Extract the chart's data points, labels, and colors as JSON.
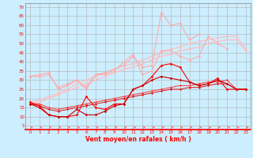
{
  "x": [
    0,
    1,
    2,
    3,
    4,
    5,
    6,
    7,
    8,
    9,
    10,
    11,
    12,
    13,
    14,
    15,
    16,
    17,
    18,
    19,
    20,
    21,
    22,
    23
  ],
  "bg_color": "#cceeff",
  "grid_color": "#b0b0b0",
  "line_top_jagged_color": "#ffaaaa",
  "line_top_jagged_y": [
    32,
    32,
    33,
    26,
    28,
    30,
    26,
    33,
    34,
    36,
    38,
    43,
    37,
    38,
    67,
    60,
    61,
    52,
    55,
    null,
    null,
    null,
    null,
    null
  ],
  "line_mid_jagged_color": "#ffaaaa",
  "line_mid_jagged_y": [
    32,
    33,
    34,
    25,
    27,
    30,
    25,
    33,
    33,
    35,
    40,
    44,
    33,
    35,
    46,
    46,
    43,
    41,
    43,
    54,
    50,
    47,
    null,
    null
  ],
  "line_diag1_color": "#ffbbbb",
  "line_diag1_y": [
    18,
    19,
    21,
    23,
    25,
    28,
    30,
    32,
    34,
    36,
    38,
    39,
    41,
    43,
    45,
    47,
    48,
    50,
    51,
    52,
    53,
    54,
    54,
    47
  ],
  "line_diag2_color": "#ffbbbb",
  "line_diag2_y": [
    17,
    18,
    20,
    22,
    24,
    26,
    28,
    30,
    32,
    34,
    36,
    37,
    39,
    41,
    43,
    44,
    46,
    47,
    48,
    50,
    51,
    52,
    52,
    46
  ],
  "line_bot_jagged1_color": "#ff0000",
  "line_bot_jagged1_y": [
    18,
    16,
    11,
    10,
    10,
    11,
    21,
    15,
    14,
    17,
    17,
    25,
    27,
    32,
    38,
    39,
    37,
    29,
    27,
    28,
    31,
    25,
    25,
    25
  ],
  "line_bot_jagged2_color": "#cc0000",
  "line_bot_jagged2_y": [
    17,
    15,
    11,
    10,
    10,
    14,
    11,
    11,
    13,
    16,
    17,
    25,
    27,
    30,
    32,
    31,
    30,
    29,
    27,
    28,
    30,
    28,
    25,
    25
  ],
  "line_diag3_color": "#ff3333",
  "line_diag3_y": [
    17,
    17,
    15,
    14,
    15,
    16,
    17,
    18,
    19,
    20,
    21,
    22,
    23,
    24,
    25,
    26,
    27,
    27,
    28,
    29,
    29,
    30,
    25,
    25
  ],
  "line_diag4_color": "#dd1111",
  "line_diag4_y": [
    17,
    16,
    14,
    13,
    14,
    15,
    16,
    17,
    18,
    19,
    20,
    21,
    22,
    23,
    24,
    25,
    25,
    26,
    26,
    27,
    28,
    28,
    25,
    25
  ],
  "arrow_color": "#ff6666",
  "xlabel": "Vent moyen/en rafales ( km/h )",
  "xlabel_color": "#ff0000",
  "tick_color": "#ff0000",
  "yticks": [
    5,
    10,
    15,
    20,
    25,
    30,
    35,
    40,
    45,
    50,
    55,
    60,
    65,
    70
  ],
  "ylim": [
    3,
    72
  ],
  "xlim": [
    -0.5,
    23.5
  ]
}
